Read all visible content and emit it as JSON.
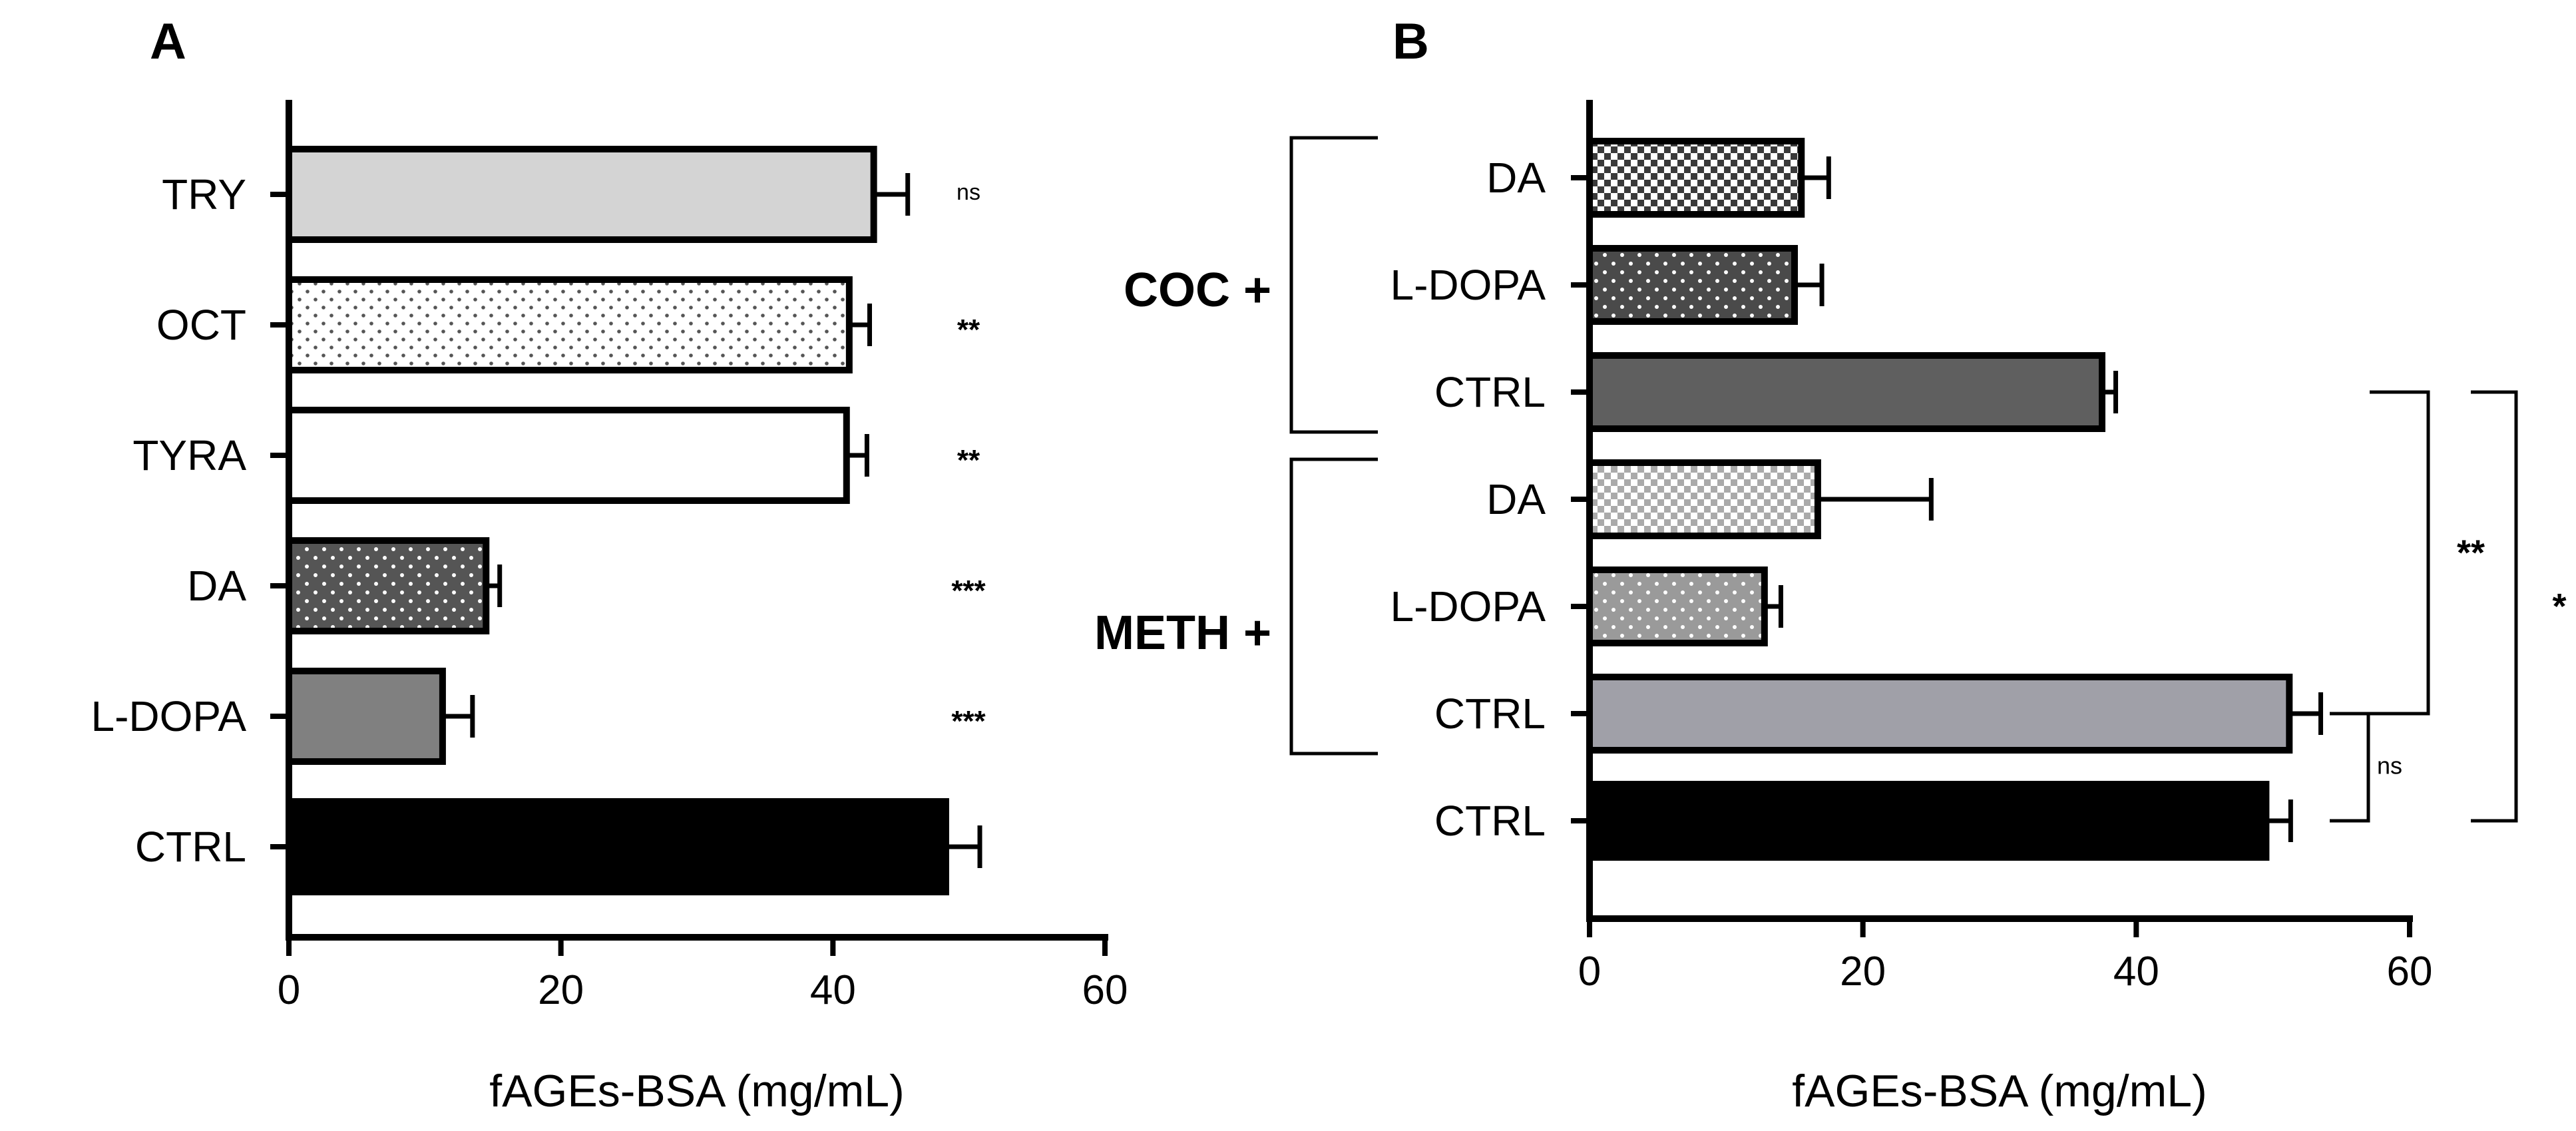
{
  "panels": {
    "A": {
      "letter": "A"
    },
    "B": {
      "letter": "B",
      "group_labels": [
        "COC +",
        "METH +"
      ],
      "comparisons": [
        {
          "label": "**",
          "from": 5,
          "to": 2
        },
        {
          "label": "*",
          "from": 6,
          "to": 2
        },
        {
          "label": "ns",
          "from": 6,
          "to": 5
        }
      ]
    }
  },
  "chart_data": [
    {
      "panel": "A",
      "type": "bar",
      "orientation": "horizontal",
      "categories": [
        "TRY",
        "OCT",
        "TYRA",
        "DA",
        "L-DOPA",
        "CTRL"
      ],
      "values": [
        43.0,
        41.2,
        41.0,
        14.5,
        11.3,
        48.3
      ],
      "errors": [
        2.5,
        1.5,
        1.5,
        1.0,
        2.2,
        2.5
      ],
      "annotations": [
        "ns",
        "**",
        "**",
        "***",
        "***",
        ""
      ],
      "fills": [
        "#d4d4d4",
        "dots-light",
        "#ffffff",
        "dots-dark",
        "#808080",
        "#000000"
      ],
      "xlabel": "fAGEs-BSA (mg/mL)",
      "xlim": [
        0,
        60
      ],
      "xticks": [
        "0",
        "20",
        "40",
        "60"
      ],
      "grid": false
    },
    {
      "panel": "B",
      "type": "bar",
      "orientation": "horizontal",
      "categories": [
        "DA",
        "L-DOPA",
        "CTRL",
        "DA",
        "L-DOPA",
        "CTRL",
        "CTRL"
      ],
      "values": [
        15.5,
        15.0,
        37.5,
        16.7,
        12.8,
        51.2,
        49.5
      ],
      "errors": [
        2.0,
        2.0,
        1.0,
        8.3,
        1.2,
        2.3,
        1.8
      ],
      "fills": [
        "checker-dark",
        "dots-darkgray",
        "#5f5f5f",
        "checker-light",
        "dots-gray",
        "#a0a0a8",
        "#000000"
      ],
      "xlabel": "fAGEs-BSA (mg/mL)",
      "xlim": [
        0,
        60
      ],
      "xticks": [
        "0",
        "20",
        "40",
        "60"
      ],
      "grid": false
    }
  ]
}
